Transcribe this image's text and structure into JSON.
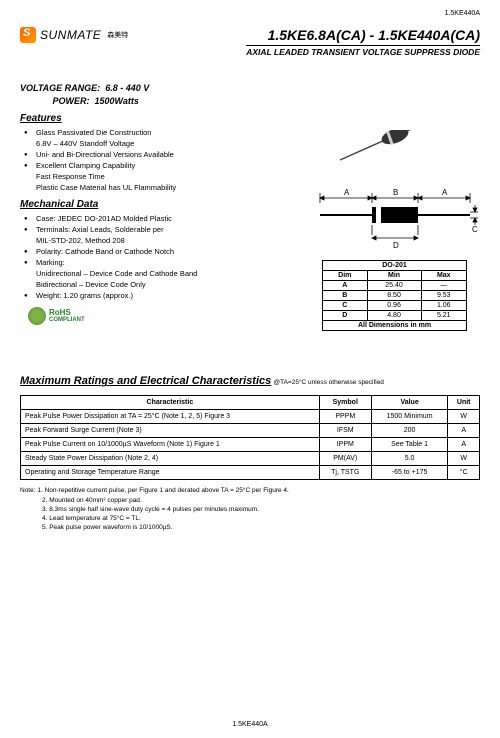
{
  "header": {
    "partnum_small": "1.5KE440A",
    "brand": "SUNMATE",
    "brand_cn": "森美特",
    "title_main": "1.5KE6.8A(CA) - 1.5KE440A(CA)",
    "title_sub": "AXIAL LEADED TRANSIENT VOLTAGE SUPPRESS DIODE"
  },
  "specs": {
    "voltage_label": "VOLTAGE  RANGE:",
    "voltage_value": "6.8 - 440 V",
    "power_label": "POWER:",
    "power_value": "1500Watts"
  },
  "features": {
    "title": "Features",
    "items": [
      "Glass Passivated Die Construction",
      "6.8V – 440V Standoff Voltage",
      "Uni- and Bi-Directional Versions Available",
      "Excellent Clamping Capability",
      "Fast Response Time",
      "Plastic Case Material has UL Flammability"
    ],
    "bullet_at": [
      0,
      2,
      3
    ]
  },
  "mechanical": {
    "title": "Mechanical Data",
    "items": [
      "Case: JEDEC DO-201AD Molded Plastic",
      "Terminals: Axial Leads, Solderable per",
      "MIL-STD-202, Method 208",
      "Polarity: Cathode Band or Cathode Notch",
      "Marking:",
      "Unidirectional – Device Code and Cathode Band",
      "Bidirectional – Device Code Only",
      "Weight: 1.20 grams (approx.)"
    ],
    "bullet_at": [
      0,
      1,
      3,
      4,
      7
    ]
  },
  "rohs": {
    "line1": "RoHS",
    "line2": "COMPLIANT"
  },
  "dim_table": {
    "caption": "DO-201",
    "headers": [
      "Dim",
      "Min",
      "Max"
    ],
    "rows": [
      [
        "A",
        "25.40",
        "—"
      ],
      [
        "B",
        "8.50",
        "9.53"
      ],
      [
        "C",
        "0.96",
        "1.06"
      ],
      [
        "D",
        "4.80",
        "5.21"
      ]
    ],
    "footer": "All Dimensions in mm"
  },
  "drawing": {
    "labels": {
      "A1": "A",
      "B": "B",
      "A2": "A",
      "C": "C",
      "D": "D"
    }
  },
  "ratings": {
    "title": "Maximum Ratings and Electrical Characteristics",
    "condition": "@TA=25°C unless otherwise specified",
    "headers": [
      "Characteristic",
      "Symbol",
      "Value",
      "Unit"
    ],
    "rows": [
      [
        "Peak Pulse Power Dissipation at TA = 25°C (Note 1, 2, 5) Figure 3",
        "PPPM",
        "1500 Minimum",
        "W"
      ],
      [
        "Peak Forward Surge Current (Note 3)",
        "IFSM",
        "200",
        "A"
      ],
      [
        "Peak Pulse Current on 10/1000µS Waveform (Note 1) Figure 1",
        "IPPM",
        "See Table 1",
        "A"
      ],
      [
        "Steady State Power Dissipation (Note 2, 4)",
        "PM(AV)",
        "5.0",
        "W"
      ],
      [
        "Operating and Storage Temperature Range",
        "Tj, TSTG",
        "-65 to +175",
        "°C"
      ]
    ]
  },
  "notes": {
    "lead": "Note:",
    "items": [
      "1. Non-repetitive current pulse, per Figure 1 and derated above TA = 25°C per Figure 4.",
      "2. Mounted on 40mm² copper pad.",
      "3. 8.3ms single half sine-wave duty cycle = 4 pulses per minutes maximum.",
      "4. Lead temperature at 75°C = TL.",
      "5. Peak pulse power waveform is 10/1000µS."
    ]
  },
  "footer": "1.5KE440A"
}
